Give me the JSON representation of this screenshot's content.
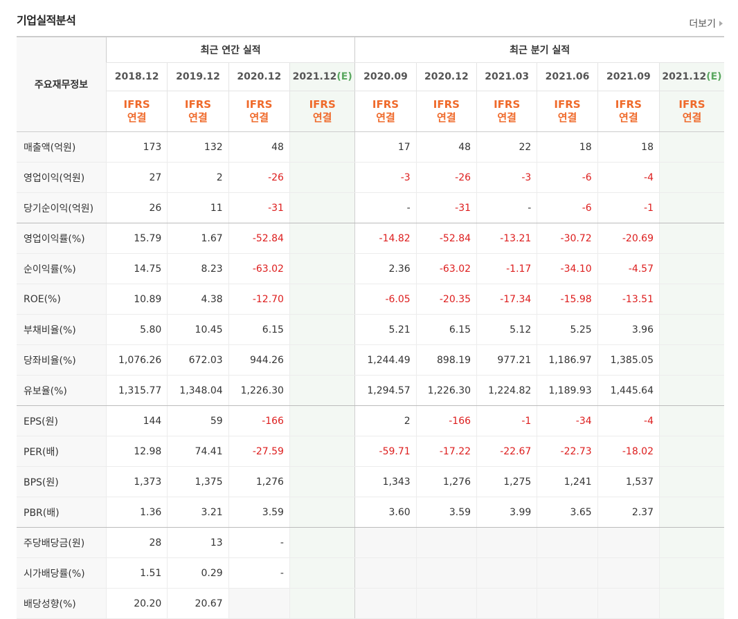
{
  "section_title": "기업실적분석",
  "more_label": "더보기",
  "header": {
    "label": "주요재무정보",
    "annual_group": "최근 연간 실적",
    "quarter_group": "최근 분기 실적",
    "annual_dates": [
      "2018.12",
      "2019.12",
      "2020.12",
      "2021.12"
    ],
    "quarter_dates": [
      "2020.09",
      "2020.12",
      "2021.03",
      "2021.06",
      "2021.09",
      "2021.12"
    ],
    "estimate_mark": "(E)",
    "ifrs_top": "IFRS",
    "ifrs_bottom": "연결"
  },
  "rows": [
    {
      "label": "매출액(억원)",
      "values": [
        "173",
        "132",
        "48",
        "",
        "17",
        "48",
        "22",
        "18",
        "18",
        ""
      ]
    },
    {
      "label": "영업이익(억원)",
      "values": [
        "27",
        "2",
        "-26",
        "",
        "-3",
        "-26",
        "-3",
        "-6",
        "-4",
        ""
      ]
    },
    {
      "label": "당기순이익(억원)",
      "values": [
        "26",
        "11",
        "-31",
        "",
        "-",
        "-31",
        "-",
        "-6",
        "-1",
        ""
      ]
    },
    {
      "label": "영업이익률(%)",
      "values": [
        "15.79",
        "1.67",
        "-52.84",
        "",
        "-14.82",
        "-52.84",
        "-13.21",
        "-30.72",
        "-20.69",
        ""
      ]
    },
    {
      "label": "순이익률(%)",
      "values": [
        "14.75",
        "8.23",
        "-63.02",
        "",
        "2.36",
        "-63.02",
        "-1.17",
        "-34.10",
        "-4.57",
        ""
      ]
    },
    {
      "label": "ROE(%)",
      "values": [
        "10.89",
        "4.38",
        "-12.70",
        "",
        "-6.05",
        "-20.35",
        "-17.34",
        "-15.98",
        "-13.51",
        ""
      ]
    },
    {
      "label": "부채비율(%)",
      "values": [
        "5.80",
        "10.45",
        "6.15",
        "",
        "5.21",
        "6.15",
        "5.12",
        "5.25",
        "3.96",
        ""
      ]
    },
    {
      "label": "당좌비율(%)",
      "values": [
        "1,076.26",
        "672.03",
        "944.26",
        "",
        "1,244.49",
        "898.19",
        "977.21",
        "1,186.97",
        "1,385.05",
        ""
      ]
    },
    {
      "label": "유보율(%)",
      "values": [
        "1,315.77",
        "1,348.04",
        "1,226.30",
        "",
        "1,294.57",
        "1,226.30",
        "1,224.82",
        "1,189.93",
        "1,445.64",
        ""
      ]
    },
    {
      "label": "EPS(원)",
      "values": [
        "144",
        "59",
        "-166",
        "",
        "2",
        "-166",
        "-1",
        "-34",
        "-4",
        ""
      ]
    },
    {
      "label": "PER(배)",
      "values": [
        "12.98",
        "74.41",
        "-27.59",
        "",
        "-59.71",
        "-17.22",
        "-22.67",
        "-22.73",
        "-18.02",
        ""
      ]
    },
    {
      "label": "BPS(원)",
      "values": [
        "1,373",
        "1,375",
        "1,276",
        "",
        "1,343",
        "1,276",
        "1,275",
        "1,241",
        "1,537",
        ""
      ]
    },
    {
      "label": "PBR(배)",
      "values": [
        "1.36",
        "3.21",
        "3.59",
        "",
        "3.60",
        "3.59",
        "3.99",
        "3.65",
        "2.37",
        ""
      ]
    },
    {
      "label": "주당배당금(원)",
      "values": [
        "28",
        "13",
        "-",
        "",
        "",
        "",
        "",
        "",
        "",
        ""
      ]
    },
    {
      "label": "시가배당률(%)",
      "values": [
        "1.51",
        "0.29",
        "-",
        "",
        "",
        "",
        "",
        "",
        "",
        ""
      ]
    },
    {
      "label": "배당성향(%)",
      "values": [
        "20.20",
        "20.67",
        "",
        "",
        "",
        "",
        "",
        "",
        "",
        ""
      ]
    }
  ],
  "colors": {
    "negative": "#dd1d1d",
    "ifrs": "#ef6a2b",
    "estimate_mark": "#5aa760",
    "estimate_bg": "#f3f8f3"
  }
}
